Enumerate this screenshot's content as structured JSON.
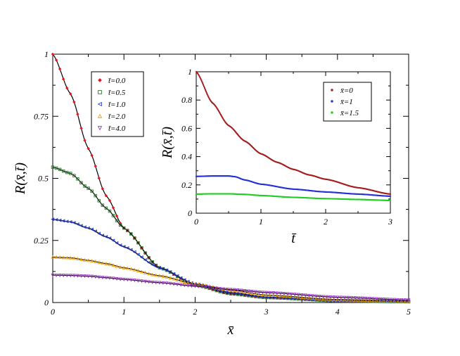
{
  "chart_data": [
    {
      "type": "line",
      "xlabel": "x̄",
      "ylabel": "R(x̄,t̄)",
      "xlim": [
        0,
        5
      ],
      "ylim": [
        0,
        1
      ],
      "x_ticks": [
        "0",
        "1",
        "2",
        "3",
        "4",
        "5"
      ],
      "y_ticks": [
        "0",
        "0.25",
        "0.5",
        "0.75",
        "1"
      ],
      "legend_position": "top-left",
      "series": [
        {
          "name": "t̄=0.0",
          "color": "#e8141a",
          "marker": "diamond",
          "t": 0.0,
          "x": [
            0,
            0.25,
            0.5,
            0.75,
            1,
            1.5,
            2,
            2.5,
            3,
            4,
            5
          ],
          "values": [
            1.0,
            0.84,
            0.62,
            0.43,
            0.3,
            0.14,
            0.07,
            0.035,
            0.02,
            0.007,
            0.003
          ]
        },
        {
          "name": "t̄=0.5",
          "color": "#2d7a2d",
          "marker": "square",
          "t": 0.5,
          "x": [
            0,
            0.25,
            0.5,
            0.75,
            1,
            1.5,
            2,
            2.5,
            3,
            4,
            5
          ],
          "values": [
            0.545,
            0.52,
            0.46,
            0.38,
            0.3,
            0.14,
            0.07,
            0.035,
            0.02,
            0.007,
            0.003
          ]
        },
        {
          "name": "t̄=1.0",
          "color": "#2a3fd6",
          "marker": "triangle-left",
          "t": 1.0,
          "x": [
            0,
            0.25,
            0.5,
            0.75,
            1,
            1.5,
            2,
            2.5,
            3,
            4,
            5
          ],
          "values": [
            0.335,
            0.325,
            0.3,
            0.265,
            0.225,
            0.14,
            0.075,
            0.04,
            0.022,
            0.008,
            0.004
          ]
        },
        {
          "name": "t̄=2.0",
          "color": "#f5a300",
          "marker": "triangle-up",
          "t": 2.0,
          "x": [
            0,
            0.25,
            0.5,
            0.75,
            1,
            1.5,
            2,
            2.5,
            3,
            4,
            5
          ],
          "values": [
            0.183,
            0.18,
            0.17,
            0.157,
            0.14,
            0.108,
            0.075,
            0.05,
            0.03,
            0.012,
            0.005
          ]
        },
        {
          "name": "t̄=4.0",
          "color": "#9b30c8",
          "marker": "triangle-down",
          "t": 4.0,
          "x": [
            0,
            0.25,
            0.5,
            0.75,
            1,
            1.5,
            2,
            2.5,
            3,
            4,
            5
          ],
          "values": [
            0.11,
            0.109,
            0.106,
            0.1,
            0.093,
            0.08,
            0.066,
            0.052,
            0.04,
            0.021,
            0.01
          ]
        }
      ]
    },
    {
      "type": "line",
      "xlabel": "t̄",
      "ylabel": "R(x̄,t̄)",
      "xlim": [
        0,
        3
      ],
      "ylim": [
        0,
        1
      ],
      "x_ticks": [
        "0",
        "1",
        "2",
        "3"
      ],
      "y_ticks": [
        "0",
        "0.2",
        "0.4",
        "0.6",
        "0.8",
        "1"
      ],
      "legend_position": "top-right",
      "series": [
        {
          "name": "x̄=0",
          "color": "#a51c1c",
          "marker": "dot",
          "x": [
            0,
            0.25,
            0.5,
            0.75,
            1,
            1.25,
            1.5,
            1.75,
            2,
            2.5,
            3
          ],
          "values": [
            1.0,
            0.78,
            0.62,
            0.51,
            0.42,
            0.36,
            0.31,
            0.27,
            0.24,
            0.18,
            0.135
          ]
        },
        {
          "name": "x̄=1",
          "color": "#2530d8",
          "marker": "dot",
          "x": [
            0,
            0.25,
            0.5,
            0.6,
            0.75,
            1,
            1.5,
            2,
            2.5,
            3
          ],
          "values": [
            0.26,
            0.263,
            0.263,
            0.258,
            0.235,
            0.205,
            0.17,
            0.15,
            0.135,
            0.12
          ]
        },
        {
          "name": "x̄=1.5",
          "color": "#22cc22",
          "marker": "dot",
          "x": [
            0,
            0.25,
            0.5,
            0.75,
            1,
            1.5,
            2,
            2.5,
            3
          ],
          "values": [
            0.135,
            0.137,
            0.137,
            0.133,
            0.125,
            0.112,
            0.103,
            0.097,
            0.09
          ]
        }
      ]
    }
  ]
}
